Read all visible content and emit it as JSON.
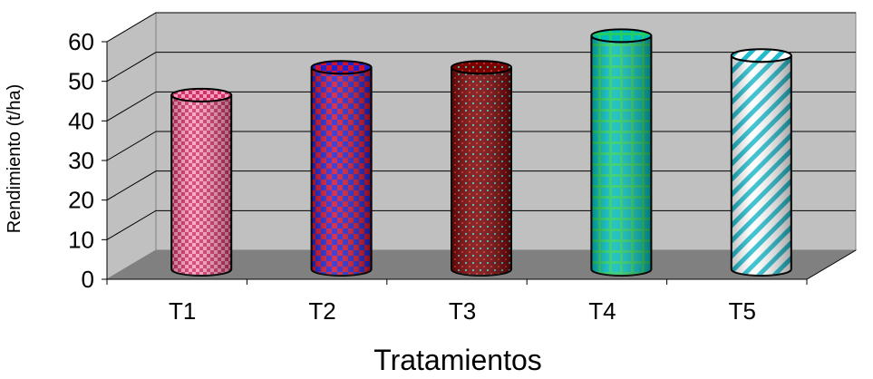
{
  "chart_data": {
    "type": "bar",
    "style": "3d-cylinder",
    "title": "",
    "xlabel": "Tratamientos",
    "ylabel": "Rendimiento (t/ha)",
    "categories": [
      "T1",
      "T2",
      "T3",
      "T4",
      "T5"
    ],
    "values": [
      44,
      51,
      51,
      59,
      54
    ],
    "ylim": [
      0,
      60
    ],
    "yticks": [
      0,
      10,
      20,
      30,
      40,
      50,
      60
    ],
    "grid": true,
    "legend": "none",
    "colors": {
      "wall": "#c0c0c0",
      "floor": "#808080",
      "grid": "#000000",
      "bars": [
        {
          "base": "#cc3366",
          "alt": "#ff99bb"
        },
        {
          "base": "#2222cc",
          "alt": "#cc1133"
        },
        {
          "base": "#7a0000",
          "alt": "#33bbbb"
        },
        {
          "base": "#00bbbb",
          "alt": "#22cc66"
        },
        {
          "base": "#ffffff",
          "alt": "#22bbcc"
        }
      ]
    }
  }
}
